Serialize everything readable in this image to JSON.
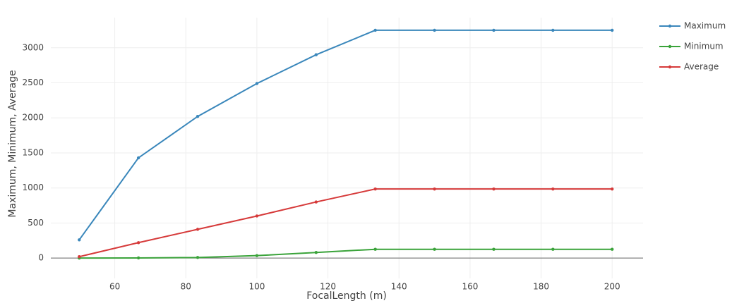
{
  "chart_data": {
    "type": "line",
    "x_label": "FocalLength (m)",
    "y_label": "Maximum, Minimum, Average",
    "x": [
      50,
      66.67,
      83.33,
      100,
      116.67,
      133.33,
      150,
      166.67,
      183.33,
      200
    ],
    "series": [
      {
        "name": "Maximum",
        "color": "#3a87bb",
        "values": [
          260,
          1430,
          2020,
          2490,
          2900,
          3250,
          3250,
          3250,
          3250,
          3250
        ]
      },
      {
        "name": "Minimum",
        "color": "#3aa33a",
        "values": [
          0,
          2,
          8,
          35,
          80,
          125,
          125,
          125,
          125,
          125
        ]
      },
      {
        "name": "Average",
        "color": "#d63a3a",
        "values": [
          20,
          220,
          410,
          600,
          800,
          985,
          985,
          985,
          985,
          985
        ]
      }
    ],
    "xlim": [
      42,
      208.7
    ],
    "xticks": [
      60,
      80,
      100,
      120,
      140,
      160,
      180,
      200
    ],
    "ylim": [
      -290,
      3430
    ],
    "yticks": [
      0,
      500,
      1000,
      1500,
      2000,
      2500,
      3000
    ],
    "grid": true,
    "legend": "right"
  }
}
